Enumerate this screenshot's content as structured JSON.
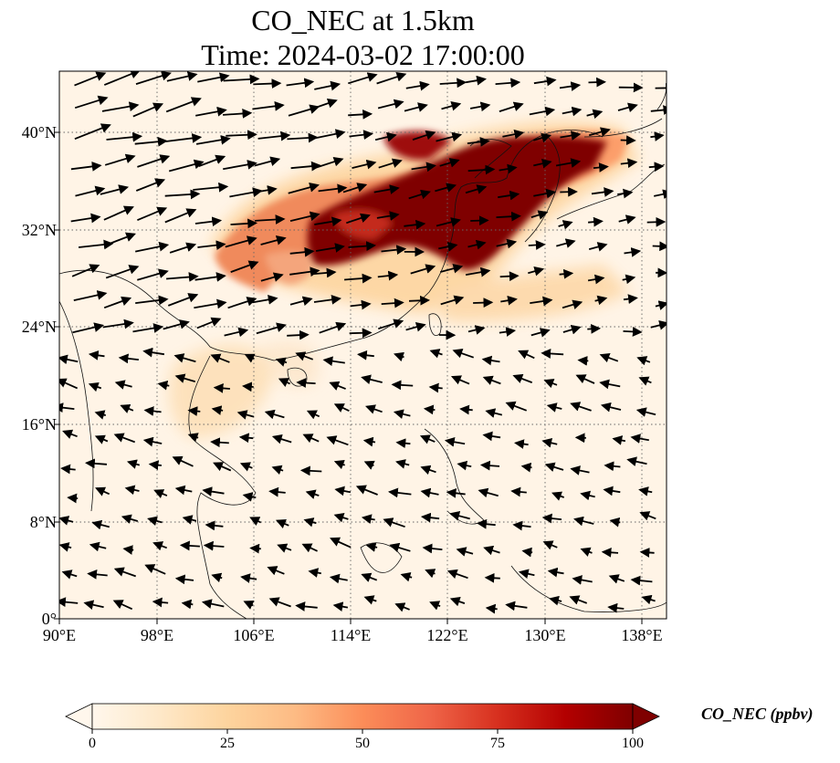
{
  "title": {
    "line1": "CO_NEC at 1.5km",
    "line2": "Time: 2024-03-02 17:00:00"
  },
  "map": {
    "lon_range": [
      90,
      140
    ],
    "lat_range": [
      0,
      45
    ],
    "x_ticks": [
      "90°E",
      "98°E",
      "106°E",
      "114°E",
      "122°E",
      "130°E",
      "138°E"
    ],
    "y_ticks": [
      "0°",
      "8°N",
      "16°N",
      "24°N",
      "32°N",
      "40°N"
    ],
    "gridlines": "dotted",
    "field": "CO_NEC",
    "colormap": "OrRd",
    "colormap_colors": [
      "#fff7ec",
      "#fee8c8",
      "#fdd49e",
      "#fdbb84",
      "#fc8d59",
      "#ef6548",
      "#d7301f",
      "#b30000",
      "#7f0000"
    ],
    "wind_vectors": "black arrows"
  },
  "colorbar": {
    "label": "CO_NEC (ppbv)",
    "range": [
      0,
      100
    ],
    "ticks": [
      "0",
      "25",
      "50",
      "75",
      "100"
    ],
    "extend": "both"
  }
}
